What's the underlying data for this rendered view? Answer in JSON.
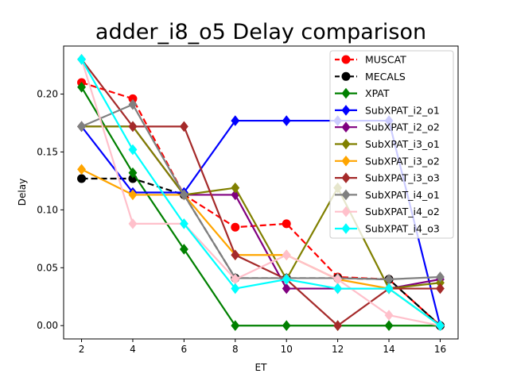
{
  "chart_data": {
    "type": "line",
    "title": "adder_i8_o5 Delay comparison",
    "xlabel": "ET",
    "ylabel": "Delay",
    "x": [
      2,
      4,
      6,
      8,
      10,
      12,
      14,
      16
    ],
    "xlim": [
      1.3,
      16.7
    ],
    "ylim": [
      -0.0115,
      0.2415
    ],
    "xticks": [
      "2",
      "4",
      "6",
      "8",
      "10",
      "12",
      "14",
      "16"
    ],
    "yticks": [
      "0.00",
      "0.05",
      "0.10",
      "0.15",
      "0.20"
    ],
    "ytick_values": [
      0,
      0.05,
      0.1,
      0.15,
      0.2
    ],
    "grid": false,
    "legend_position": "top-right",
    "series": [
      {
        "name": "MUSCAT",
        "color": "#ff0000",
        "dash": "dashed",
        "marker": "circle",
        "values": [
          0.21,
          0.196,
          0.113,
          0.085,
          0.088,
          0.042,
          0.04,
          0.0
        ]
      },
      {
        "name": "MECALS",
        "color": "#000000",
        "dash": "dashed",
        "marker": "circle",
        "values": [
          0.127,
          0.127,
          0.113,
          0.041,
          0.041,
          0.041,
          0.04,
          0.0
        ]
      },
      {
        "name": "XPAT",
        "color": "#008000",
        "dash": "solid",
        "marker": "diamond",
        "values": [
          0.206,
          0.132,
          0.066,
          0.0,
          0.0,
          0.0,
          0.0,
          0.0
        ]
      },
      {
        "name": "SubXPAT_i2_o1",
        "color": "#0000ff",
        "dash": "solid",
        "marker": "diamond",
        "values": [
          0.172,
          0.115,
          0.115,
          0.177,
          0.177,
          0.177,
          0.177,
          0.0
        ]
      },
      {
        "name": "SubXPAT_i2_o2",
        "color": "#800080",
        "dash": "solid",
        "marker": "diamond",
        "values": [
          0.172,
          0.172,
          0.113,
          0.113,
          0.032,
          0.032,
          0.032,
          0.04
        ]
      },
      {
        "name": "SubXPAT_i3_o1",
        "color": "#808000",
        "dash": "solid",
        "marker": "diamond",
        "values": [
          0.172,
          0.172,
          0.113,
          0.119,
          0.04,
          0.119,
          0.032,
          0.037
        ]
      },
      {
        "name": "SubXPAT_i3_o2",
        "color": "#ffa500",
        "dash": "solid",
        "marker": "diamond",
        "values": [
          0.135,
          0.113,
          0.113,
          0.061,
          0.061,
          0.04,
          0.032,
          0.0
        ]
      },
      {
        "name": "SubXPAT_i3_o3",
        "color": "#a52a2a",
        "dash": "solid",
        "marker": "diamond",
        "values": [
          0.23,
          0.172,
          0.172,
          0.061,
          0.04,
          0.0,
          0.032,
          0.032
        ]
      },
      {
        "name": "SubXPAT_i4_o1",
        "color": "#808080",
        "dash": "solid",
        "marker": "diamond",
        "values": [
          0.172,
          0.191,
          0.113,
          0.041,
          0.041,
          0.041,
          0.04,
          0.042
        ]
      },
      {
        "name": "SubXPAT_i4_o2",
        "color": "#ffc0cb",
        "dash": "solid",
        "marker": "diamond",
        "values": [
          0.23,
          0.088,
          0.088,
          0.04,
          0.061,
          0.04,
          0.009,
          0.0
        ]
      },
      {
        "name": "SubXPAT_i4_o3",
        "color": "#00ffff",
        "dash": "solid",
        "marker": "diamond",
        "values": [
          0.23,
          0.152,
          0.088,
          0.032,
          0.04,
          0.032,
          0.032,
          0.0
        ]
      }
    ]
  }
}
